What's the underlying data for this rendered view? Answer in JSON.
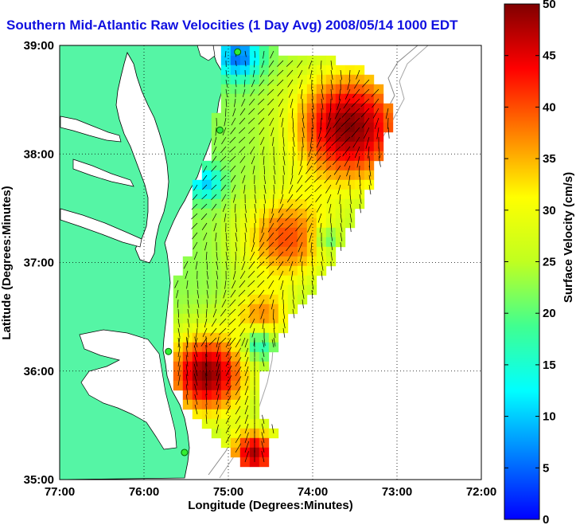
{
  "title": "Southern Mid-Atlantic Raw Velocities (1 Day Avg) 2008/05/14 1000 EDT",
  "x_axis": {
    "label": "Longitude (Degrees:Minutes)",
    "ticks": [
      "77:00",
      "76:00",
      "75:00",
      "74:00",
      "73:00",
      "72:00"
    ]
  },
  "y_axis": {
    "label": "Latitude (Degrees:Minutes)",
    "ticks": [
      "39:00",
      "38:00",
      "37:00",
      "36:00",
      "35:00"
    ]
  },
  "colorbar": {
    "label": "Surface Velocity (cm/s)",
    "ticks": [
      "0",
      "5",
      "10",
      "15",
      "20",
      "25",
      "30",
      "35",
      "40",
      "45",
      "50"
    ],
    "min": 0,
    "max": 50,
    "colormap": "jet"
  },
  "map": {
    "lon_range": [
      -77,
      -72
    ],
    "lat_range": [
      35,
      39
    ],
    "grid": true,
    "land_color": "#55f5a5",
    "water_color": "#ffffff",
    "stations": [
      {
        "lon": -74.89,
        "lat": 38.94
      },
      {
        "lon": -75.1,
        "lat": 38.22
      },
      {
        "lon": -75.71,
        "lat": 36.18
      },
      {
        "lon": -75.52,
        "lat": 35.25
      }
    ]
  }
}
